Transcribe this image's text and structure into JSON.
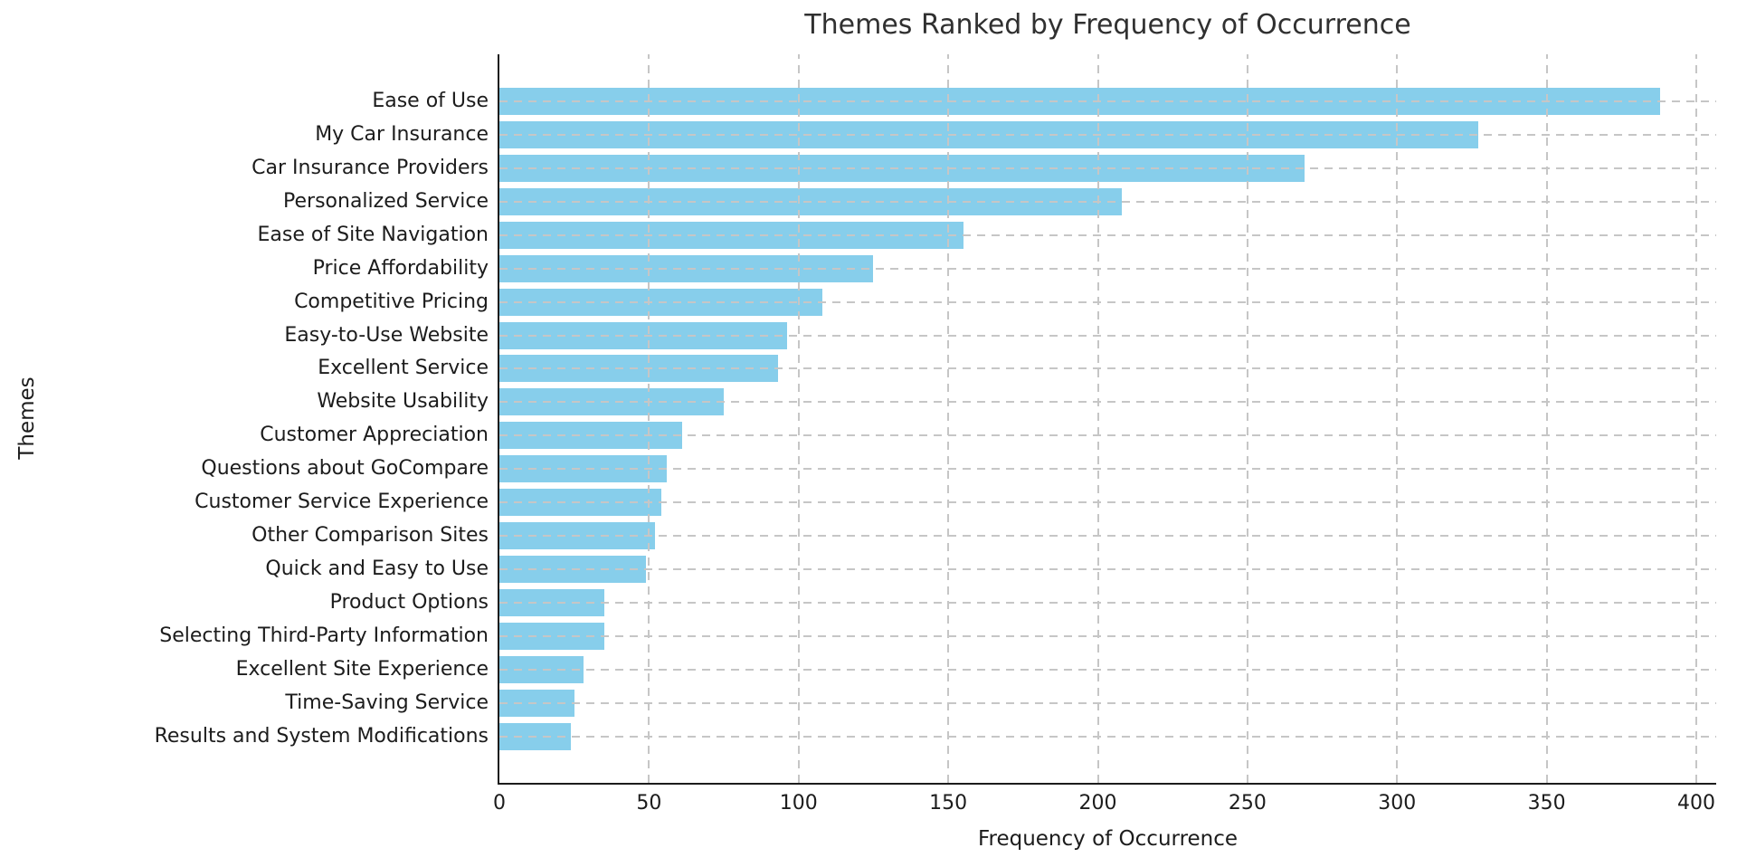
{
  "chart_data": {
    "type": "bar",
    "orientation": "horizontal",
    "title": "Themes Ranked by Frequency of Occurrence",
    "xlabel": "Frequency of Occurrence",
    "ylabel": "Themes",
    "categories": [
      "Ease of Use",
      "My Car Insurance",
      "Car Insurance Providers",
      "Personalized Service",
      "Ease of Site Navigation",
      "Price Affordability",
      "Competitive Pricing",
      "Easy-to-Use Website",
      "Excellent Service",
      "Website Usability",
      "Customer Appreciation",
      "Questions about GoCompare",
      "Customer Service Experience",
      "Other Comparison Sites",
      "Quick and Easy to Use",
      "Product Options",
      "Selecting Third-Party Information",
      "Excellent Site Experience",
      "Time-Saving Service",
      "Results and System Modifications"
    ],
    "values": [
      388,
      327,
      269,
      208,
      155,
      125,
      108,
      96,
      93,
      75,
      61,
      56,
      54,
      52,
      49,
      35,
      35,
      28,
      25,
      24
    ],
    "xlim": [
      0,
      406
    ],
    "xticks": [
      0,
      50,
      100,
      150,
      200,
      250,
      300,
      350,
      400
    ],
    "bar_color": "#87CEEB",
    "grid_color": "#c6c6c6",
    "grid_style": "dashed, drawn above bars",
    "legend": "none"
  }
}
